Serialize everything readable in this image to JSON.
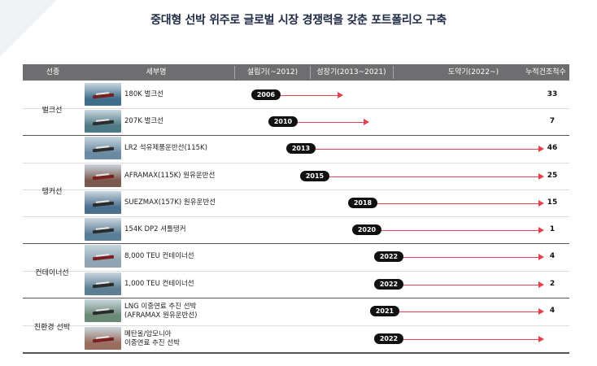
{
  "title": "중대형 선박 위주로 글로벌 시장 경쟁력을 갖춘 포트폴리오 구축",
  "header": {
    "type": "선종",
    "detail": "세부명",
    "phase1": "설립기(~2012)",
    "phase2": "성장기(2013~2021)",
    "phase3": "도약기(2022~)",
    "count": "누적건조척수"
  },
  "groups": {
    "bulk": "벌크선",
    "tanker": "탱커선",
    "container": "컨테이너선",
    "eco": "친환경 선박"
  },
  "rows": [
    {
      "label": "180K 벌크선",
      "year": "2006",
      "count": "33",
      "color": "#e8404e",
      "thumb": "#3f6d8c"
    },
    {
      "label": "207K 벌크선",
      "year": "2010",
      "count": "7",
      "color": "#e8404e",
      "thumb": "#4e7a86"
    },
    {
      "label": "LR2 석유제품운반선(115K)",
      "year": "2013",
      "count": "46",
      "color": "#e8404e",
      "thumb": "#6b8ba3"
    },
    {
      "label": "AFRAMAX(115K) 원유운반선",
      "year": "2015",
      "count": "25",
      "color": "#e8404e",
      "thumb": "#7a5a4e"
    },
    {
      "label": "SUEZMAX(157K) 원유운반선",
      "year": "2018",
      "count": "15",
      "color": "#e8404e",
      "thumb": "#4a6f8f"
    },
    {
      "label": "154K DP2 셔틀탱커",
      "year": "2020",
      "count": "1",
      "color": "#e8404e",
      "thumb": "#5a7d96"
    },
    {
      "label": "8,000 TEU 컨테이너선",
      "year": "2022",
      "count": "4",
      "color": "#e8404e",
      "thumb": "#8fa4b4"
    },
    {
      "label": "1,000 TEU 컨테이너선",
      "year": "2022",
      "count": "2",
      "color": "#e8404e",
      "thumb": "#5e7f93"
    },
    {
      "label": "LNG 이중연료 추진 선박",
      "label2": "(AFRAMAX 원유운반선)",
      "year": "2021",
      "count": "4",
      "color": "#e8404e",
      "thumb": "#6a8a76"
    },
    {
      "label": "메탄올/암모니아",
      "label2": "이중연료 추진 선박",
      "year": "2022",
      "count": "",
      "color": "#e8404e",
      "thumb": "#9a6e5e"
    }
  ]
}
